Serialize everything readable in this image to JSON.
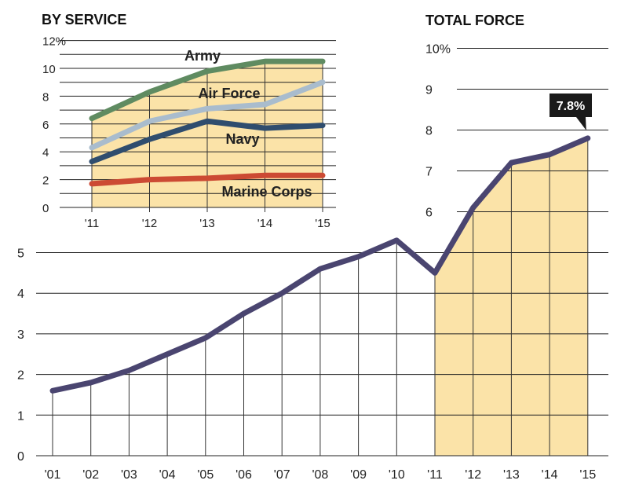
{
  "chart_data": [
    {
      "id": "total",
      "type": "line",
      "title": "TOTAL FORCE",
      "x": [
        "'01",
        "'02",
        "'03",
        "'04",
        "'05",
        "'06",
        "'07",
        "'08",
        "'09",
        "'10",
        "'11",
        "'12",
        "'13",
        "'14",
        "'15"
      ],
      "values": [
        1.6,
        1.8,
        2.1,
        2.5,
        2.9,
        3.5,
        4.0,
        4.6,
        4.9,
        5.3,
        4.5,
        6.1,
        7.2,
        7.4,
        7.8
      ],
      "y_ticks": [
        "0",
        "1",
        "2",
        "3",
        "4",
        "5",
        "6",
        "7",
        "8",
        "9",
        "10%"
      ],
      "ylim": [
        0,
        10
      ],
      "highlight_range": [
        "'11",
        "'15"
      ],
      "annotation": "7.8%",
      "line_color": "#4a4570",
      "fill_color": "#fbe3a8"
    },
    {
      "id": "service",
      "type": "line",
      "title": "BY SERVICE",
      "x": [
        "'11",
        "'12",
        "'13",
        "'14",
        "'15"
      ],
      "y_ticks": [
        "0",
        "2",
        "4",
        "6",
        "8",
        "10",
        "12%"
      ],
      "ylim": [
        0,
        12
      ],
      "series": [
        {
          "name": "Army",
          "values": [
            6.4,
            8.3,
            9.8,
            10.5,
            10.5
          ],
          "color": "#5f8b61"
        },
        {
          "name": "Air Force",
          "values": [
            4.3,
            6.2,
            7.1,
            7.4,
            9.0
          ],
          "color": "#a9bccd"
        },
        {
          "name": "Navy",
          "values": [
            3.3,
            4.9,
            6.2,
            5.7,
            5.9
          ],
          "color": "#2f4d6e"
        },
        {
          "name": "Marine Corps",
          "values": [
            1.7,
            2.0,
            2.1,
            2.3,
            2.3
          ],
          "color": "#cc4a33"
        }
      ],
      "fill_color": "#fbe3a8"
    }
  ]
}
